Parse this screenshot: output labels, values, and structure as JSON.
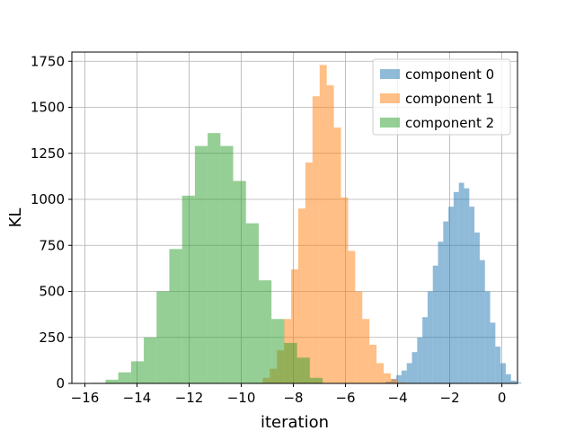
{
  "chart_data": {
    "type": "histogram",
    "xlabel": "iteration",
    "ylabel": "KL",
    "xlim": [
      -16.5,
      0.6
    ],
    "ylim": [
      0,
      1800
    ],
    "xticks": [
      -16,
      -14,
      -12,
      -10,
      -8,
      -6,
      -4,
      -2,
      0
    ],
    "yticks": [
      0,
      250,
      500,
      750,
      1000,
      1250,
      1500,
      1750
    ],
    "grid": true,
    "legend_position": "top-right",
    "series": [
      {
        "name": "component 0",
        "color": "#1f77b4",
        "opacity": 0.5,
        "bin_start": -4.65,
        "bin_width": 0.2,
        "counts": [
          3,
          10,
          25,
          45,
          70,
          110,
          170,
          250,
          360,
          500,
          640,
          770,
          880,
          960,
          1040,
          1090,
          1060,
          960,
          820,
          670,
          500,
          330,
          200,
          110,
          50,
          15,
          5
        ]
      },
      {
        "name": "component 1",
        "color": "#ff7f0e",
        "opacity": 0.5,
        "bin_start": -9.45,
        "bin_width": 0.273,
        "counts": [
          3,
          30,
          80,
          180,
          350,
          620,
          950,
          1200,
          1560,
          1730,
          1620,
          1390,
          1010,
          720,
          500,
          350,
          210,
          110,
          55,
          22,
          5
        ]
      },
      {
        "name": "component 2",
        "color": "#2ca02c",
        "opacity": 0.5,
        "bin_start": -15.7,
        "bin_width": 0.49,
        "counts": [
          3,
          20,
          60,
          120,
          250,
          500,
          730,
          1020,
          1290,
          1360,
          1290,
          1100,
          870,
          560,
          350,
          220,
          140,
          30
        ]
      }
    ]
  }
}
